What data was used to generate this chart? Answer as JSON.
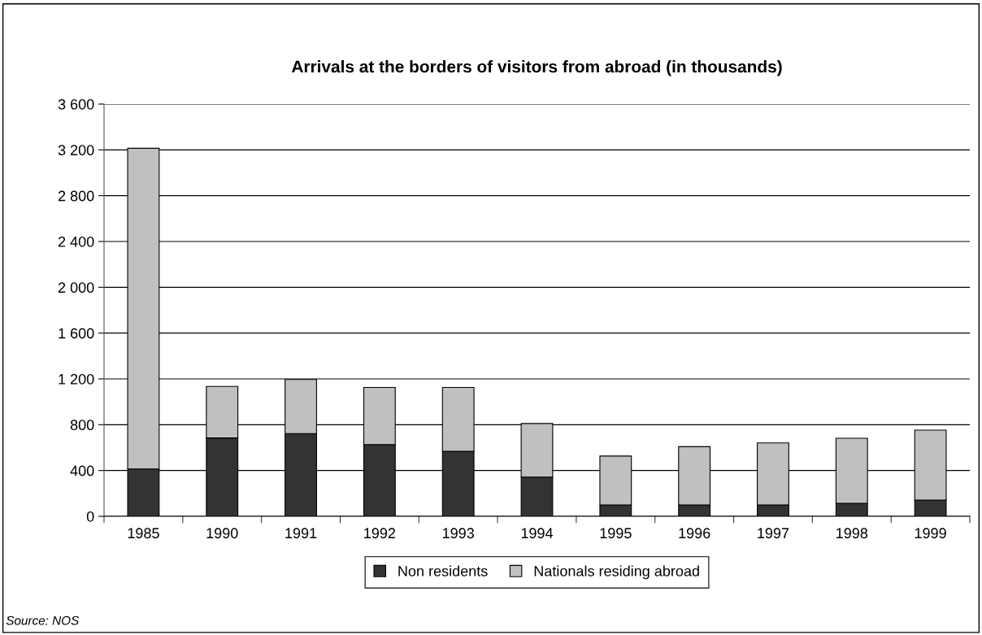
{
  "chart_data": {
    "type": "bar",
    "title": "Arrivals at the borders of visitors from abroad (in thousands)",
    "categories": [
      "1985",
      "1990",
      "1991",
      "1992",
      "1993",
      "1994",
      "1995",
      "1996",
      "1997",
      "1998",
      "1999"
    ],
    "stacked": true,
    "series": [
      {
        "name": "Non residents",
        "color": "#333333",
        "values": [
          414,
          684,
          722,
          627,
          568,
          343,
          99,
          99,
          99,
          114,
          142
        ]
      },
      {
        "name": "Nationals residing abroad",
        "color": "#c0c0c0",
        "values": [
          2800,
          450,
          473,
          498,
          557,
          467,
          427,
          509,
          542,
          568,
          611
        ]
      }
    ],
    "ylim": [
      0,
      3600
    ],
    "yticks": [
      0,
      400,
      800,
      {
        "value": 1200,
        "label": "1 200"
      },
      {
        "value": 1600,
        "label": "1 600"
      },
      {
        "value": 2000,
        "label": "2 000"
      },
      {
        "value": 2400,
        "label": "2 400"
      },
      {
        "value": 2800,
        "label": "2 800"
      },
      {
        "value": 3200,
        "label": "3 200"
      },
      {
        "value": 3600,
        "label": "3 600"
      }
    ],
    "grid": "y",
    "legend": "bottom",
    "annotations": [
      "Source: NOS"
    ]
  }
}
